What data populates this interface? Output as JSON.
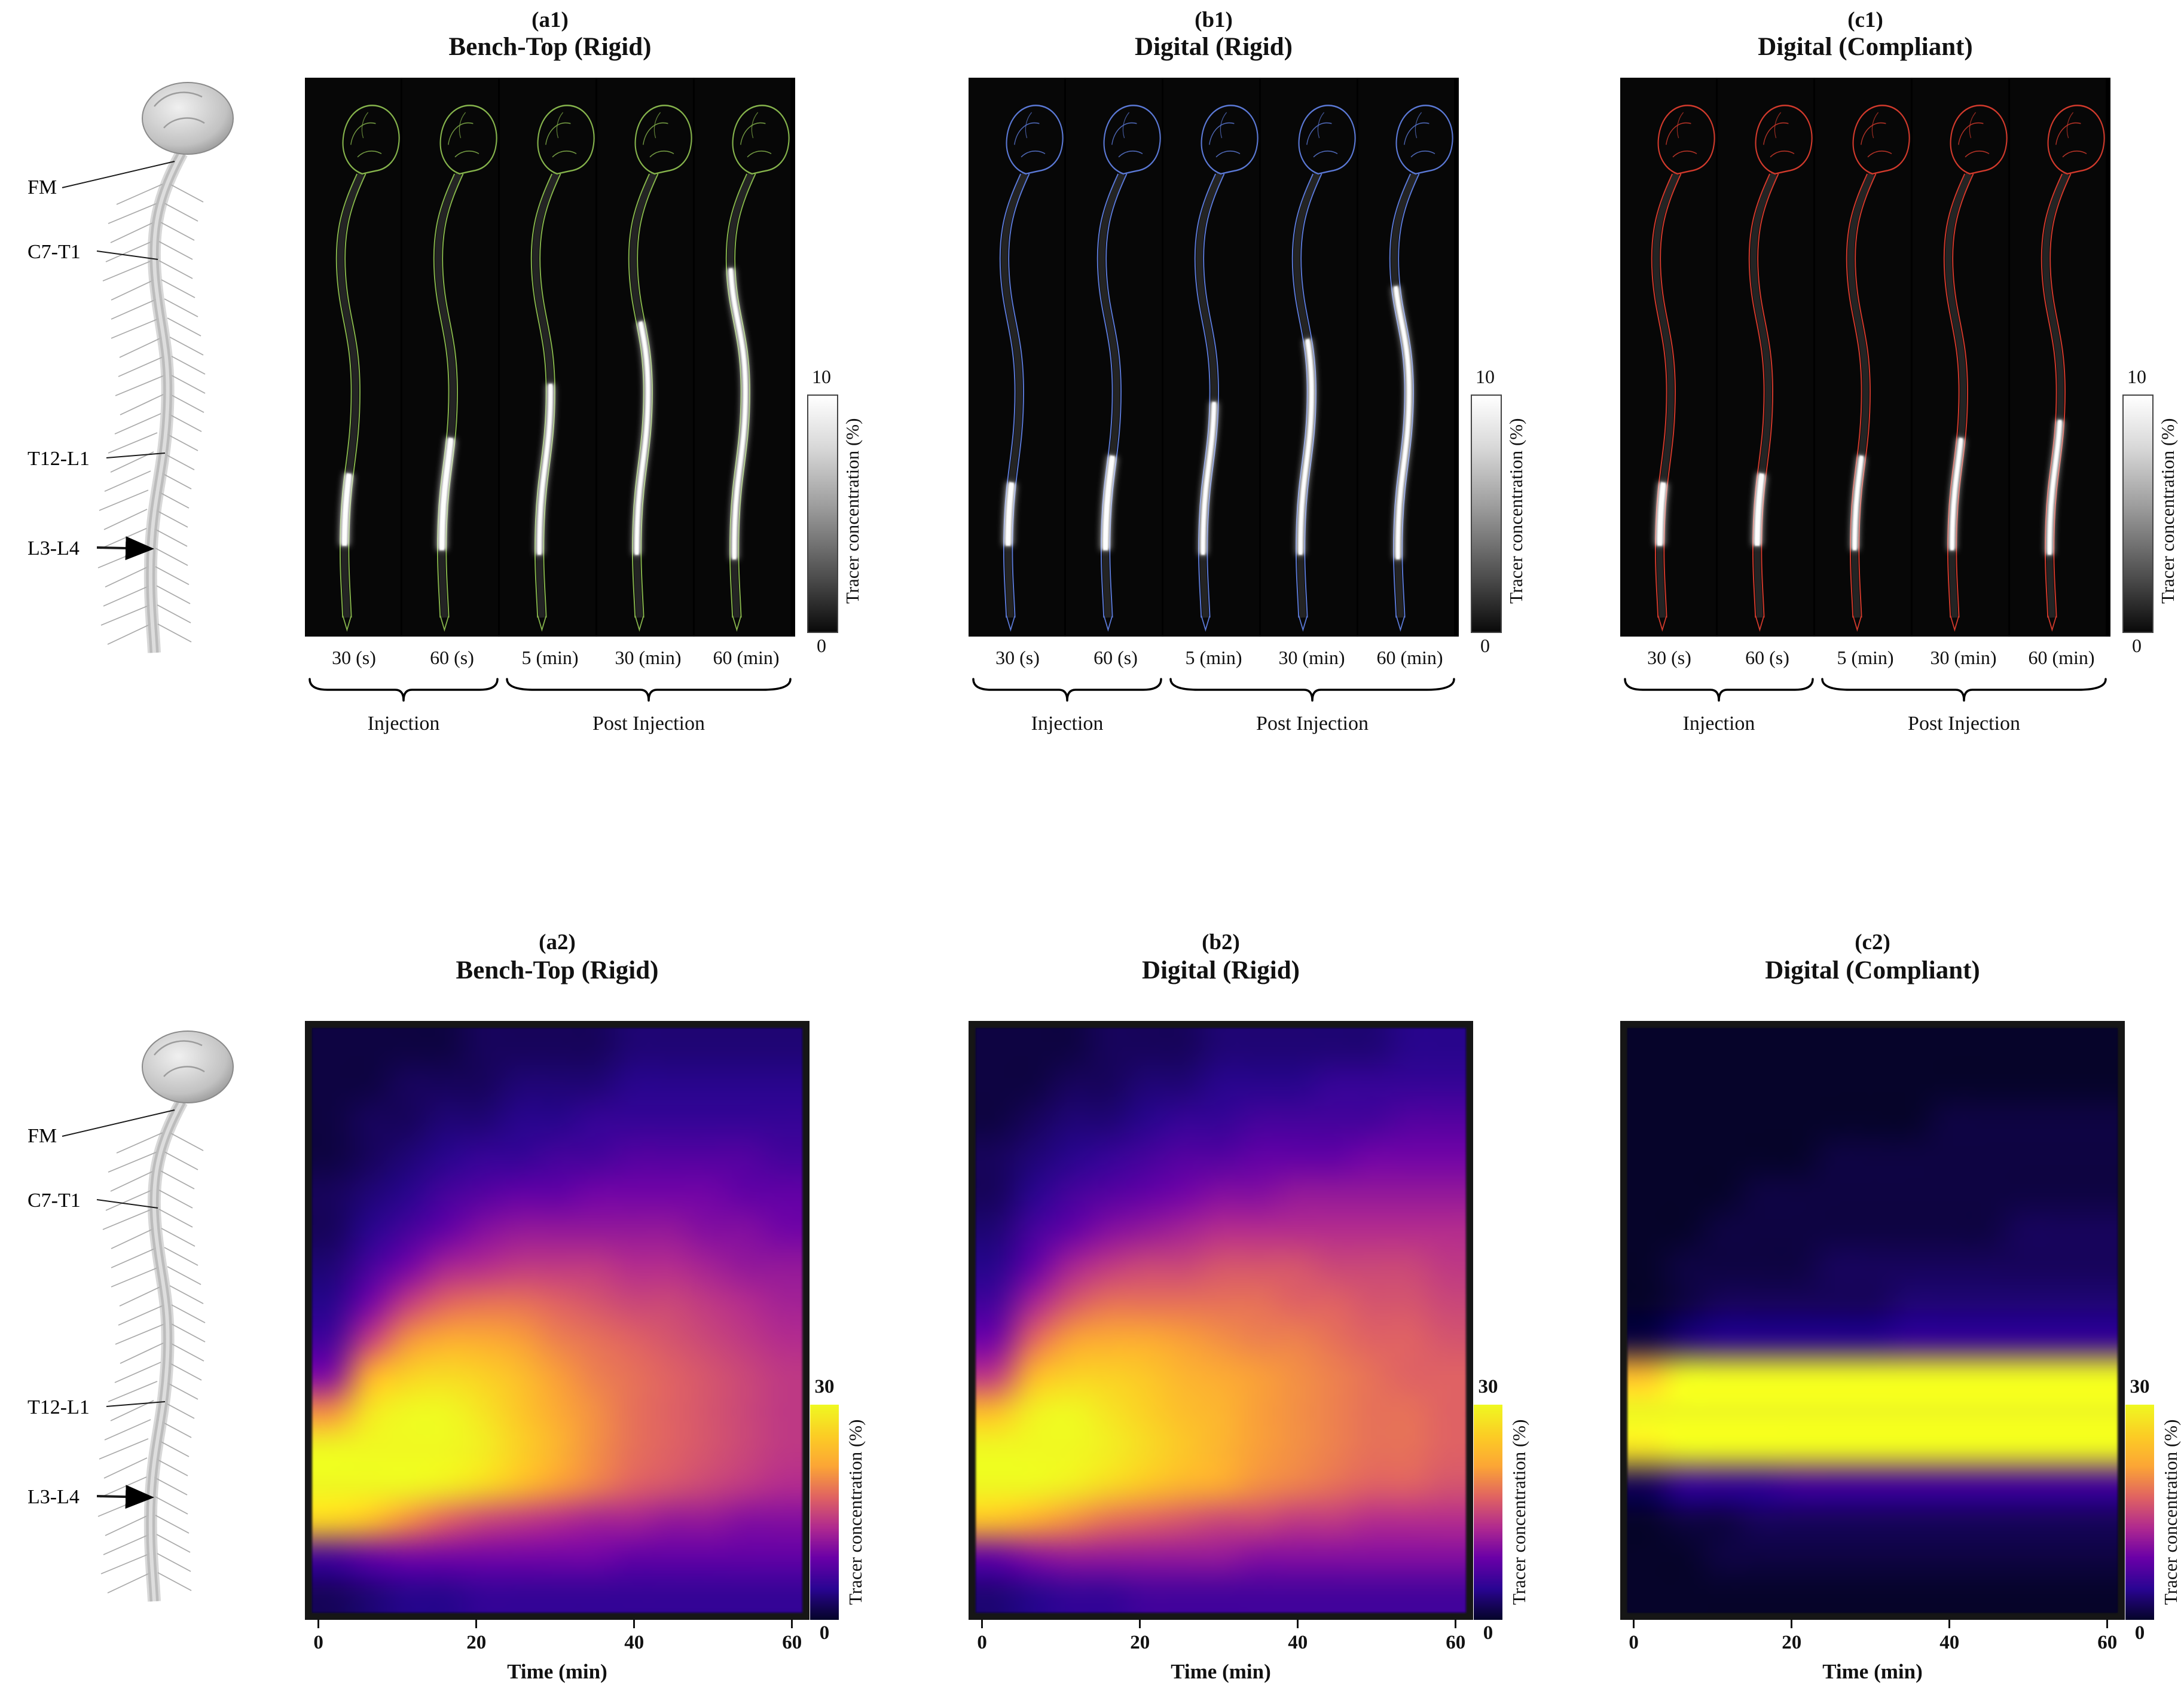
{
  "colors": {
    "benchtop_outline": "#86b44c",
    "digital_rigid_outline": "#5b79d6",
    "digital_compliant_outline": "#d23a2c",
    "tracer_gray_low": "#000000",
    "tracer_gray_high": "#ffffff",
    "heatmap_colormap": [
      "#06042a",
      "#2a0593",
      "#6a00a8",
      "#b12a90",
      "#e16462",
      "#fca636",
      "#fcce25",
      "#f0f921"
    ]
  },
  "anatomy": {
    "labels": [
      "FM",
      "C7-T1",
      "T12-L1",
      "L3-L4"
    ]
  },
  "top_row": {
    "colorbar": {
      "max": "10",
      "min": "0",
      "label": "Tracer concentration (%)"
    },
    "time_labels": [
      "30 (s)",
      "60 (s)",
      "5 (min)",
      "30 (min)",
      "60 (min)"
    ],
    "injection_label": "Injection",
    "post_injection_label": "Post Injection",
    "panels": [
      {
        "tag": "(a1)",
        "title": "Bench-Top (Rigid)",
        "outline_color": "#86b44c",
        "tracer_extents": [
          [
            68,
            84
          ],
          [
            60,
            85
          ],
          [
            48,
            86
          ],
          [
            34,
            86
          ],
          [
            22,
            87
          ]
        ]
      },
      {
        "tag": "(b1)",
        "title": "Digital (Rigid)",
        "outline_color": "#5b79d6",
        "tracer_extents": [
          [
            70,
            84
          ],
          [
            64,
            85
          ],
          [
            52,
            86
          ],
          [
            38,
            86
          ],
          [
            26,
            87
          ]
        ]
      },
      {
        "tag": "(c1)",
        "title": "Digital (Compliant)",
        "outline_color": "#d23a2c",
        "tracer_extents": [
          [
            70,
            84
          ],
          [
            68,
            84
          ],
          [
            64,
            85
          ],
          [
            60,
            85
          ],
          [
            56,
            86
          ]
        ]
      }
    ]
  },
  "bottom_row": {
    "colorbar": {
      "max": "30",
      "min": "0",
      "label": "Tracer concentration (%)"
    },
    "x_ticks": [
      "0",
      "20",
      "40",
      "60"
    ],
    "x_label": "Time (min)",
    "panels": [
      {
        "tag": "(a2)",
        "title": "Bench-Top (Rigid)"
      },
      {
        "tag": "(b2)",
        "title": "Digital (Rigid)"
      },
      {
        "tag": "(c2)",
        "title": "Digital (Compliant)"
      }
    ]
  },
  "chart_data": [
    {
      "type": "heatmap",
      "panel": "a2",
      "title": "Bench-Top (Rigid)",
      "xlabel": "Time (min)",
      "x_range": [
        0,
        62
      ],
      "x_ticks": [
        0,
        20,
        40,
        60
      ],
      "colorbar_label": "Tracer concentration (%)",
      "value_range": [
        0,
        30
      ],
      "y_axis": "position along spine, FM (top) to sacrum (bottom); injection at L3-L4",
      "x_samples": [
        0,
        5,
        10,
        15,
        20,
        25,
        30,
        35,
        40,
        45,
        50,
        55,
        60
      ],
      "values": [
        [
          1,
          1,
          1,
          1,
          2,
          2,
          2,
          2,
          3,
          3,
          3,
          3,
          3
        ],
        [
          1,
          1,
          2,
          2,
          2,
          3,
          3,
          3,
          4,
          4,
          4,
          4,
          4
        ],
        [
          1,
          2,
          2,
          3,
          3,
          4,
          4,
          5,
          5,
          5,
          5,
          5,
          5
        ],
        [
          1,
          2,
          3,
          4,
          5,
          5,
          6,
          6,
          7,
          7,
          7,
          7,
          6
        ],
        [
          2,
          3,
          4,
          6,
          7,
          8,
          8,
          9,
          9,
          9,
          9,
          8,
          8
        ],
        [
          2,
          4,
          6,
          8,
          10,
          11,
          11,
          11,
          11,
          11,
          10,
          10,
          9
        ],
        [
          3,
          6,
          9,
          12,
          13,
          14,
          14,
          14,
          13,
          13,
          12,
          11,
          11
        ],
        [
          4,
          9,
          14,
          17,
          18,
          18,
          17,
          16,
          15,
          15,
          14,
          13,
          12
        ],
        [
          6,
          14,
          20,
          22,
          22,
          21,
          19,
          18,
          17,
          16,
          15,
          14,
          13
        ],
        [
          10,
          22,
          26,
          27,
          26,
          24,
          21,
          19,
          18,
          17,
          16,
          15,
          14
        ],
        [
          20,
          28,
          30,
          30,
          28,
          25,
          22,
          20,
          18,
          17,
          16,
          15,
          14
        ],
        [
          30,
          30,
          30,
          30,
          29,
          26,
          23,
          20,
          18,
          17,
          16,
          15,
          14
        ],
        [
          30,
          30,
          30,
          29,
          27,
          24,
          21,
          19,
          17,
          16,
          15,
          14,
          13
        ],
        [
          26,
          24,
          20,
          17,
          15,
          14,
          13,
          12,
          12,
          11,
          11,
          10,
          10
        ],
        [
          6,
          8,
          9,
          9,
          9,
          9,
          9,
          9,
          8,
          8,
          8,
          8,
          8
        ],
        [
          2,
          3,
          4,
          4,
          5,
          5,
          5,
          5,
          5,
          5,
          5,
          5,
          5
        ]
      ]
    },
    {
      "type": "heatmap",
      "panel": "b2",
      "title": "Digital (Rigid)",
      "xlabel": "Time (min)",
      "x_range": [
        0,
        62
      ],
      "x_ticks": [
        0,
        20,
        40,
        60
      ],
      "colorbar_label": "Tracer concentration (%)",
      "value_range": [
        0,
        30
      ],
      "y_axis": "position along spine, FM (top) to sacrum (bottom); injection at L3-L4",
      "x_samples": [
        0,
        5,
        10,
        15,
        20,
        25,
        30,
        35,
        40,
        45,
        50,
        55,
        60
      ],
      "values": [
        [
          1,
          1,
          1,
          2,
          2,
          2,
          3,
          3,
          3,
          3,
          3,
          4,
          4
        ],
        [
          1,
          1,
          2,
          2,
          3,
          3,
          4,
          4,
          4,
          5,
          5,
          5,
          5
        ],
        [
          1,
          2,
          3,
          3,
          4,
          5,
          5,
          6,
          6,
          6,
          6,
          7,
          7
        ],
        [
          2,
          3,
          4,
          5,
          6,
          7,
          7,
          8,
          8,
          8,
          9,
          9,
          9
        ],
        [
          2,
          4,
          6,
          7,
          8,
          9,
          10,
          10,
          11,
          11,
          11,
          11,
          11
        ],
        [
          3,
          6,
          8,
          10,
          11,
          12,
          13,
          13,
          13,
          13,
          13,
          13,
          13
        ],
        [
          4,
          8,
          12,
          14,
          15,
          15,
          16,
          16,
          16,
          15,
          15,
          15,
          14
        ],
        [
          6,
          12,
          16,
          18,
          18,
          18,
          18,
          18,
          17,
          17,
          16,
          16,
          15
        ],
        [
          9,
          17,
          21,
          22,
          22,
          21,
          20,
          19,
          19,
          18,
          17,
          17,
          16
        ],
        [
          14,
          23,
          26,
          26,
          25,
          23,
          22,
          21,
          20,
          19,
          18,
          17,
          17
        ],
        [
          24,
          29,
          30,
          28,
          26,
          24,
          23,
          21,
          20,
          19,
          18,
          18,
          17
        ],
        [
          30,
          30,
          30,
          29,
          27,
          25,
          23,
          21,
          20,
          19,
          18,
          18,
          17
        ],
        [
          30,
          30,
          29,
          27,
          25,
          23,
          22,
          20,
          19,
          18,
          17,
          17,
          16
        ],
        [
          24,
          22,
          20,
          18,
          17,
          16,
          15,
          15,
          14,
          14,
          13,
          13,
          13
        ],
        [
          8,
          10,
          11,
          11,
          11,
          11,
          11,
          10,
          10,
          10,
          10,
          10,
          10
        ],
        [
          3,
          4,
          5,
          5,
          6,
          6,
          6,
          6,
          6,
          6,
          6,
          6,
          6
        ]
      ]
    },
    {
      "type": "heatmap",
      "panel": "c2",
      "title": "Digital (Compliant)",
      "xlabel": "Time (min)",
      "x_range": [
        0,
        62
      ],
      "x_ticks": [
        0,
        20,
        40,
        60
      ],
      "colorbar_label": "Tracer concentration (%)",
      "value_range": [
        0,
        30
      ],
      "y_axis": "position along spine, FM (top) to sacrum (bottom); injection at L3-L4",
      "x_samples": [
        0,
        5,
        10,
        15,
        20,
        25,
        30,
        35,
        40,
        45,
        50,
        55,
        60
      ],
      "values": [
        [
          0,
          0,
          0,
          0,
          0,
          0,
          0,
          0,
          0,
          0,
          0,
          0,
          0
        ],
        [
          0,
          0,
          0,
          0,
          0,
          0,
          0,
          0,
          0,
          0,
          0,
          0,
          0
        ],
        [
          0,
          0,
          0,
          0,
          0,
          0,
          0,
          0,
          1,
          1,
          1,
          1,
          1
        ],
        [
          0,
          0,
          0,
          0,
          0,
          1,
          1,
          1,
          1,
          1,
          1,
          1,
          1
        ],
        [
          0,
          0,
          0,
          1,
          1,
          1,
          1,
          1,
          1,
          1,
          1,
          1,
          1
        ],
        [
          0,
          0,
          1,
          1,
          1,
          1,
          1,
          1,
          1,
          1,
          2,
          2,
          2
        ],
        [
          0,
          1,
          1,
          1,
          1,
          2,
          2,
          2,
          2,
          2,
          2,
          2,
          2
        ],
        [
          0,
          1,
          2,
          2,
          2,
          2,
          2,
          3,
          3,
          3,
          3,
          3,
          3
        ],
        [
          1,
          3,
          4,
          4,
          4,
          4,
          4,
          5,
          5,
          5,
          5,
          5,
          5
        ],
        [
          24,
          30,
          30,
          30,
          30,
          30,
          30,
          30,
          30,
          30,
          30,
          30,
          30
        ],
        [
          30,
          30,
          30,
          30,
          30,
          30,
          30,
          30,
          30,
          30,
          30,
          30,
          30
        ],
        [
          28,
          30,
          30,
          30,
          30,
          30,
          30,
          30,
          30,
          30,
          30,
          30,
          30
        ],
        [
          2,
          5,
          5,
          5,
          6,
          6,
          6,
          6,
          6,
          6,
          6,
          6,
          6
        ],
        [
          0,
          1,
          1,
          2,
          2,
          2,
          2,
          2,
          2,
          2,
          2,
          2,
          2
        ],
        [
          0,
          0,
          1,
          1,
          1,
          1,
          1,
          1,
          1,
          1,
          1,
          1,
          1
        ],
        [
          0,
          0,
          0,
          0,
          0,
          0,
          0,
          0,
          0,
          0,
          0,
          0,
          0
        ]
      ]
    }
  ]
}
